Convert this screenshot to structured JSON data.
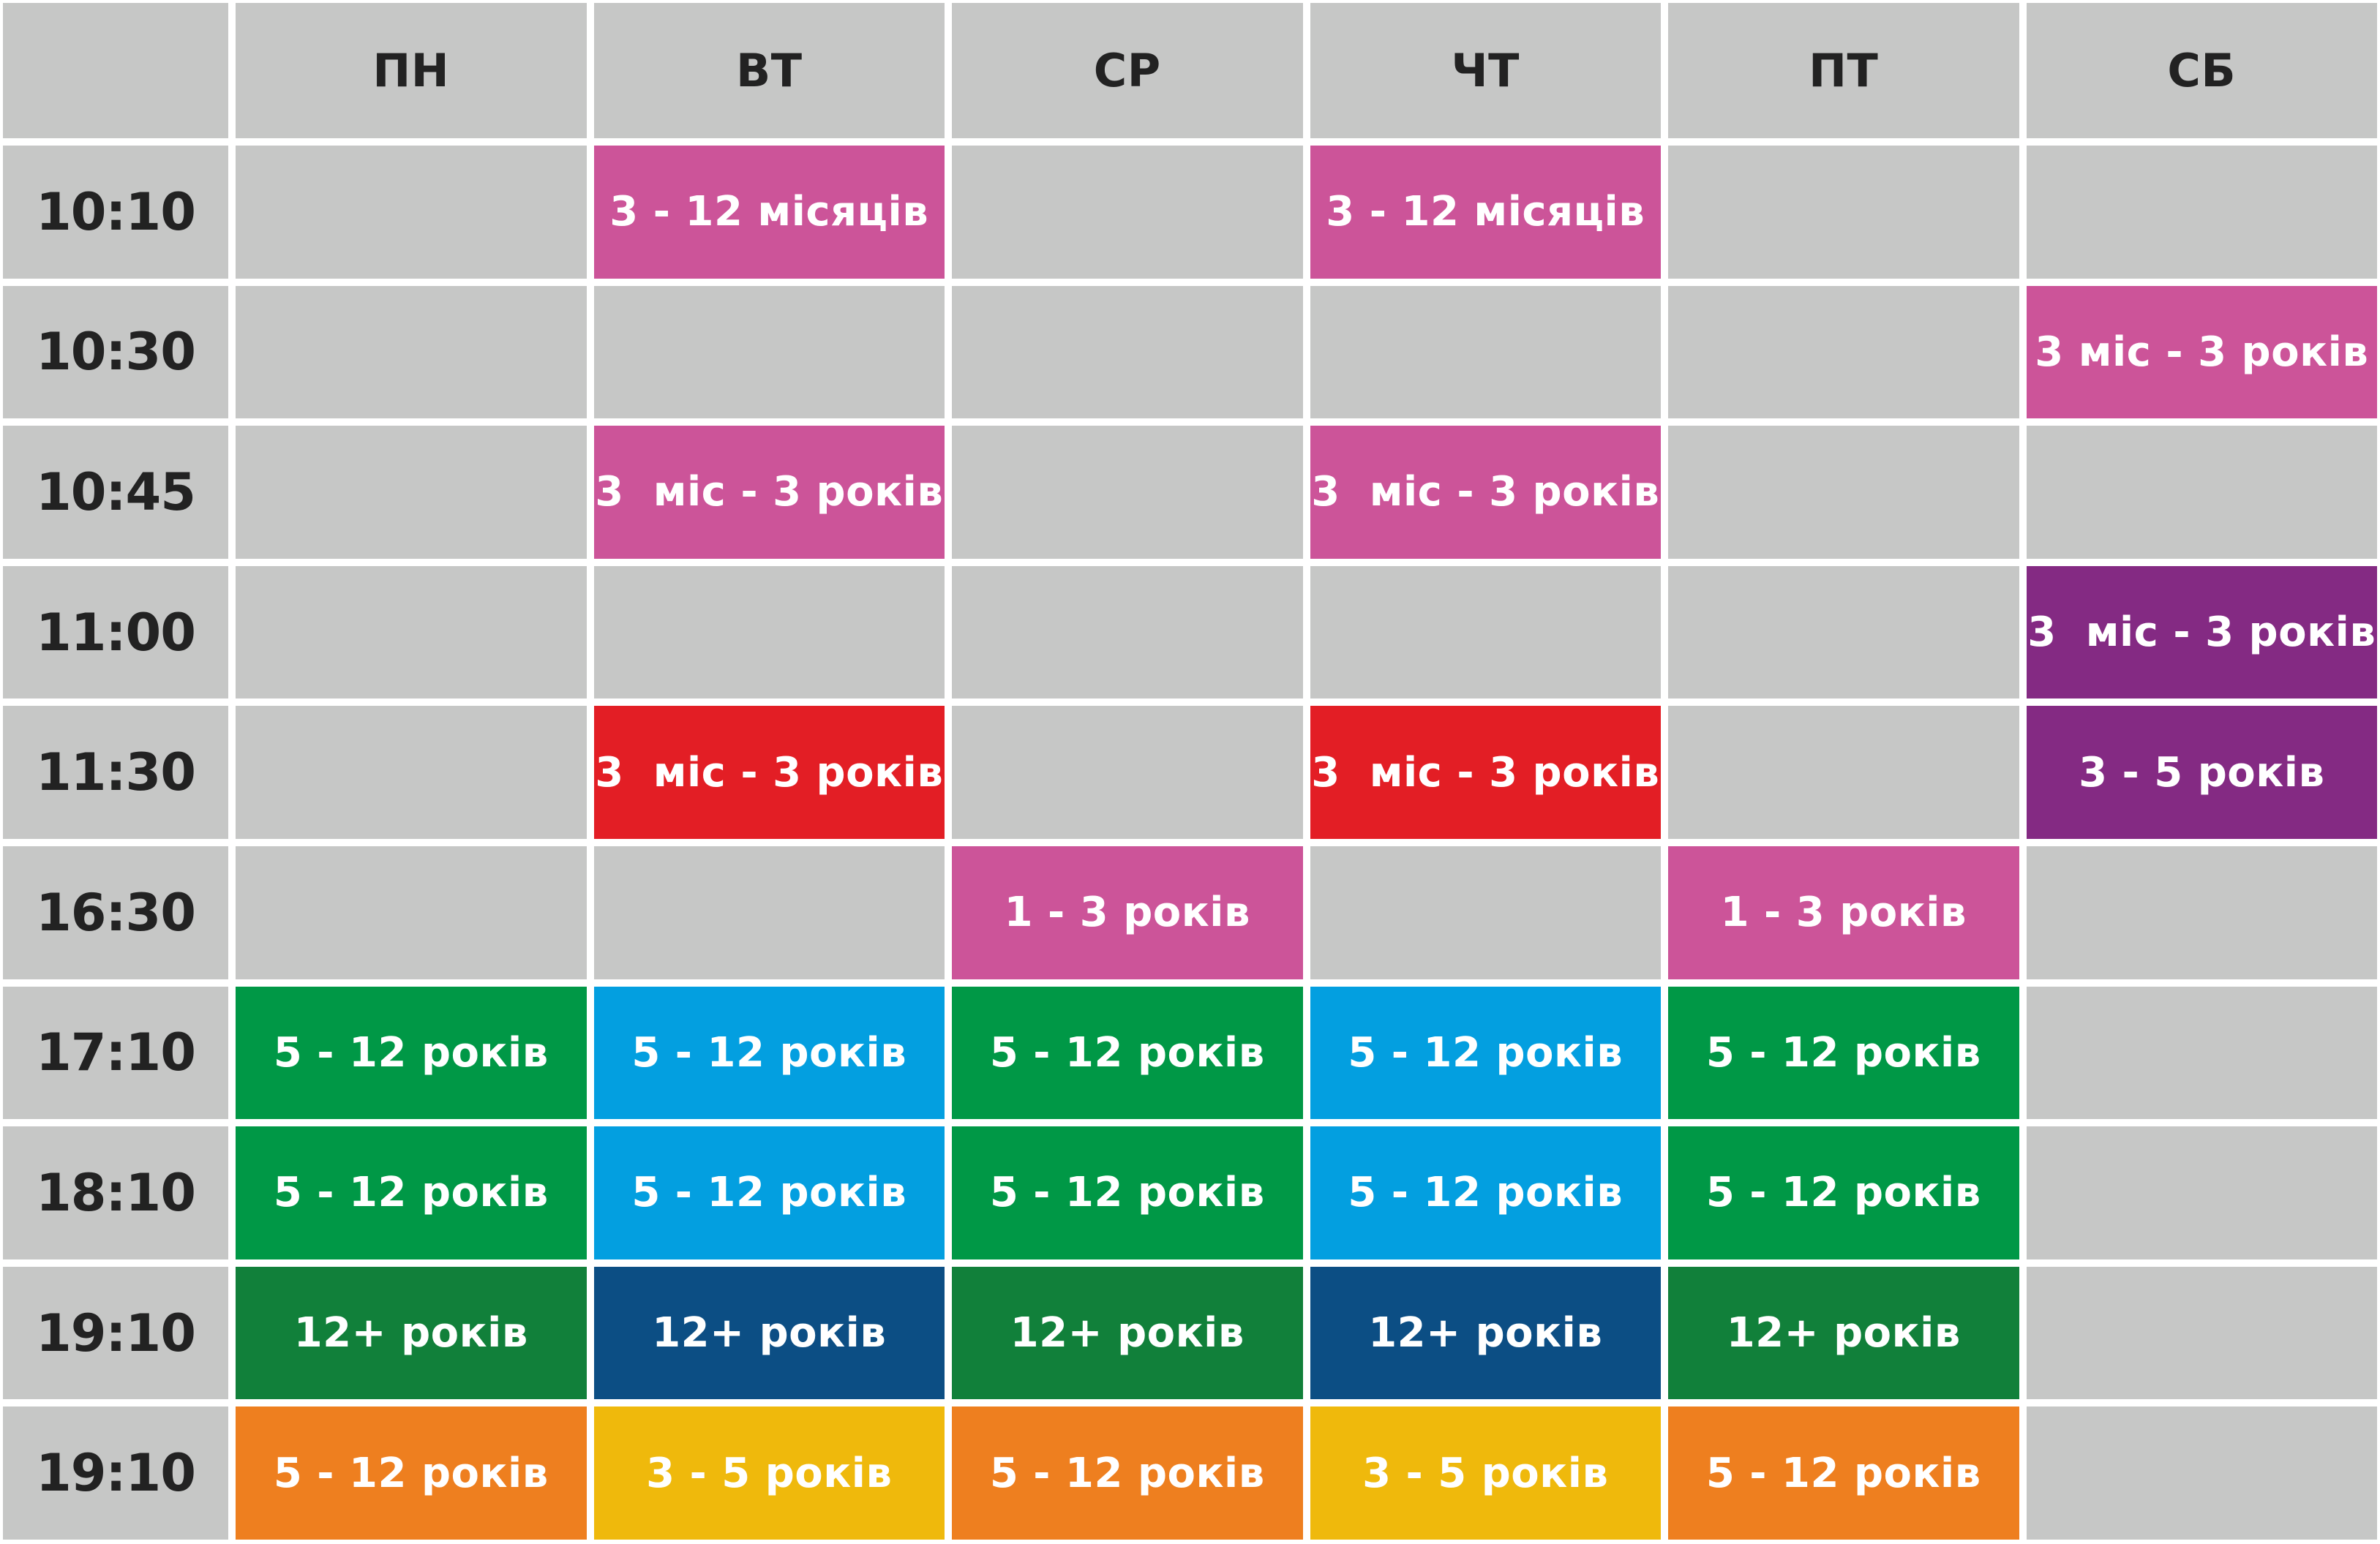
{
  "days": [
    "ПН",
    "ВТ",
    "СР",
    "ЧТ",
    "ПТ",
    "СБ"
  ],
  "rows": [
    {
      "time": "10:10",
      "cells": [
        null,
        {
          "text": "3 - 12 місяців",
          "color": "#cc5499"
        },
        null,
        {
          "text": "3 - 12 місяців",
          "color": "#cc5499"
        },
        null,
        null
      ]
    },
    {
      "time": "10:30",
      "cells": [
        null,
        null,
        null,
        null,
        null,
        {
          "text": "3 міс - 3 років",
          "color": "#cc5499"
        }
      ]
    },
    {
      "time": "10:45",
      "cells": [
        null,
        {
          "text": "3  міс - 3 років",
          "color": "#cc5499"
        },
        null,
        {
          "text": "3  міс - 3 років",
          "color": "#cc5499"
        },
        null,
        null
      ]
    },
    {
      "time": "11:00",
      "cells": [
        null,
        null,
        null,
        null,
        null,
        {
          "text": "3  міс - 3 років",
          "color": "#842a83"
        }
      ]
    },
    {
      "time": "11:30",
      "cells": [
        null,
        {
          "text": "3  міс - 3 років",
          "color": "#e31e25"
        },
        null,
        {
          "text": "3  міс - 3 років",
          "color": "#e31e25"
        },
        null,
        {
          "text": "3 - 5 років",
          "color": "#842a83"
        }
      ]
    },
    {
      "time": "16:30",
      "cells": [
        null,
        null,
        {
          "text": "1 - 3 років",
          "color": "#cc5499"
        },
        null,
        {
          "text": "1 - 3 років",
          "color": "#cc5499"
        },
        null
      ]
    },
    {
      "time": "17:10",
      "cells": [
        {
          "text": "5 - 12 років",
          "color": "#009846"
        },
        {
          "text": "5 - 12 років",
          "color": "#039fe0"
        },
        {
          "text": "5 - 12 років",
          "color": "#009846"
        },
        {
          "text": "5 - 12 років",
          "color": "#039fe0"
        },
        {
          "text": "5 - 12 років",
          "color": "#009846"
        },
        null
      ]
    },
    {
      "time": "18:10",
      "cells": [
        {
          "text": "5 - 12 років",
          "color": "#009846"
        },
        {
          "text": "5 - 12 років",
          "color": "#039fe0"
        },
        {
          "text": "5 - 12 років",
          "color": "#009846"
        },
        {
          "text": "5 - 12 років",
          "color": "#039fe0"
        },
        {
          "text": "5 - 12 років",
          "color": "#009846"
        },
        null
      ]
    },
    {
      "time": "19:10",
      "cells": [
        {
          "text": "12+ років",
          "color": "#11803a"
        },
        {
          "text": "12+ років",
          "color": "#0c4e84"
        },
        {
          "text": "12+ років",
          "color": "#11803a"
        },
        {
          "text": "12+ років",
          "color": "#0c4e84"
        },
        {
          "text": "12+ років",
          "color": "#11803a"
        },
        null
      ]
    },
    {
      "time": "19:10",
      "cells": [
        {
          "text": "5 - 12 років",
          "color": "#ee7f1f"
        },
        {
          "text": "3 - 5 років",
          "color": "#efb90c"
        },
        {
          "text": "5 - 12 років",
          "color": "#ee7f1f"
        },
        {
          "text": "3 - 5 років",
          "color": "#efb90c"
        },
        {
          "text": "5 - 12 років",
          "color": "#ee7f1f"
        },
        null
      ]
    }
  ],
  "colors": {
    "empty": "#c6c7c6",
    "grid_line": "#ffffff",
    "header_text": "#222222",
    "class_text": "#ffffff"
  }
}
